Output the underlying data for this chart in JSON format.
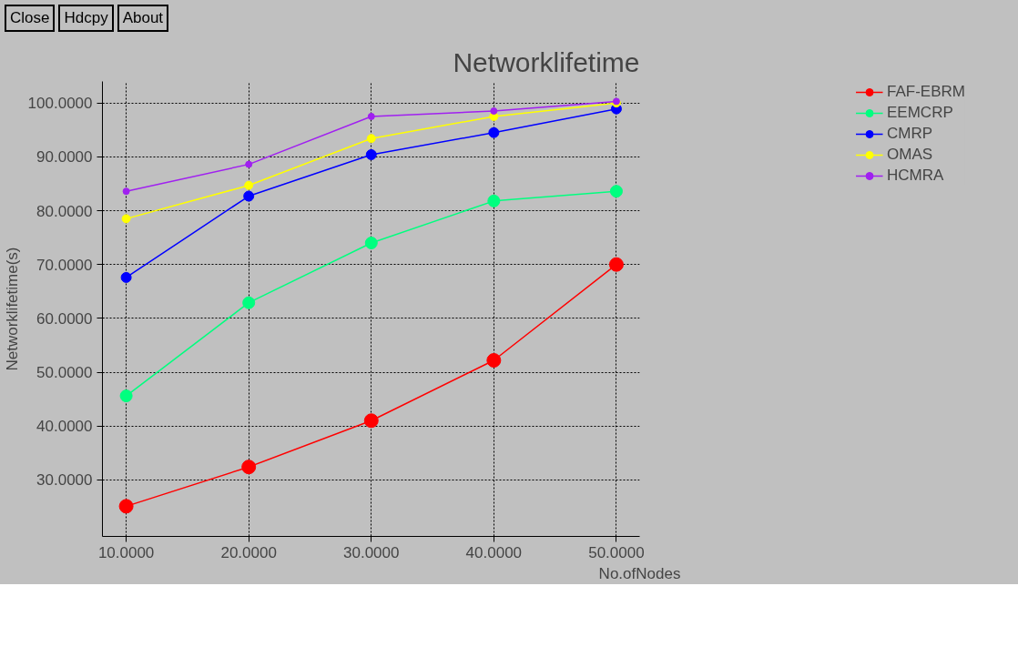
{
  "chart_data": {
    "type": "line",
    "title": "Networklifetime",
    "ylabel": "Networklifetime(s)",
    "xlabel": "No.ofNodes",
    "annotations": [
      "Close",
      "Hdcpy",
      "About"
    ],
    "x": [
      10,
      20,
      30,
      40,
      50
    ],
    "xlim": [
      8.06,
      51.9
    ],
    "ylim": [
      19.5,
      104
    ],
    "xticks": [
      {
        "value": 10,
        "label": "10.0000"
      },
      {
        "value": 20,
        "label": "20.0000"
      },
      {
        "value": 30,
        "label": "30.0000"
      },
      {
        "value": 40,
        "label": "40.0000"
      },
      {
        "value": 50,
        "label": "50.0000"
      }
    ],
    "yticks": [
      {
        "value": 30,
        "label": "30.0000"
      },
      {
        "value": 40,
        "label": "40.0000"
      },
      {
        "value": 50,
        "label": "50.0000"
      },
      {
        "value": 60,
        "label": "60.0000"
      },
      {
        "value": 70,
        "label": "70.0000"
      },
      {
        "value": 80,
        "label": "80.0000"
      },
      {
        "value": 90,
        "label": "90.0000"
      },
      {
        "value": 100,
        "label": "100.0000"
      }
    ],
    "grid": true,
    "legend": "right",
    "marker": "circle",
    "line_style": "solid",
    "series": [
      {
        "name": "FAF-EBRM",
        "color": "#ff0000",
        "values": [
          25.1,
          32.4,
          41.0,
          52.2,
          70.0
        ]
      },
      {
        "name": "EEMCRP",
        "color": "#00ff7f",
        "values": [
          45.6,
          62.9,
          74.0,
          81.8,
          83.6
        ]
      },
      {
        "name": "CMRP",
        "color": "#0000ff",
        "values": [
          67.6,
          82.7,
          90.4,
          94.5,
          98.9
        ]
      },
      {
        "name": "OMAS",
        "color": "#ffff00",
        "values": [
          78.5,
          84.7,
          93.4,
          97.5,
          100.0
        ]
      },
      {
        "name": "HCMRA",
        "color": "#a020f0",
        "values": [
          83.6,
          88.6,
          97.5,
          98.5,
          100.3
        ]
      }
    ]
  }
}
